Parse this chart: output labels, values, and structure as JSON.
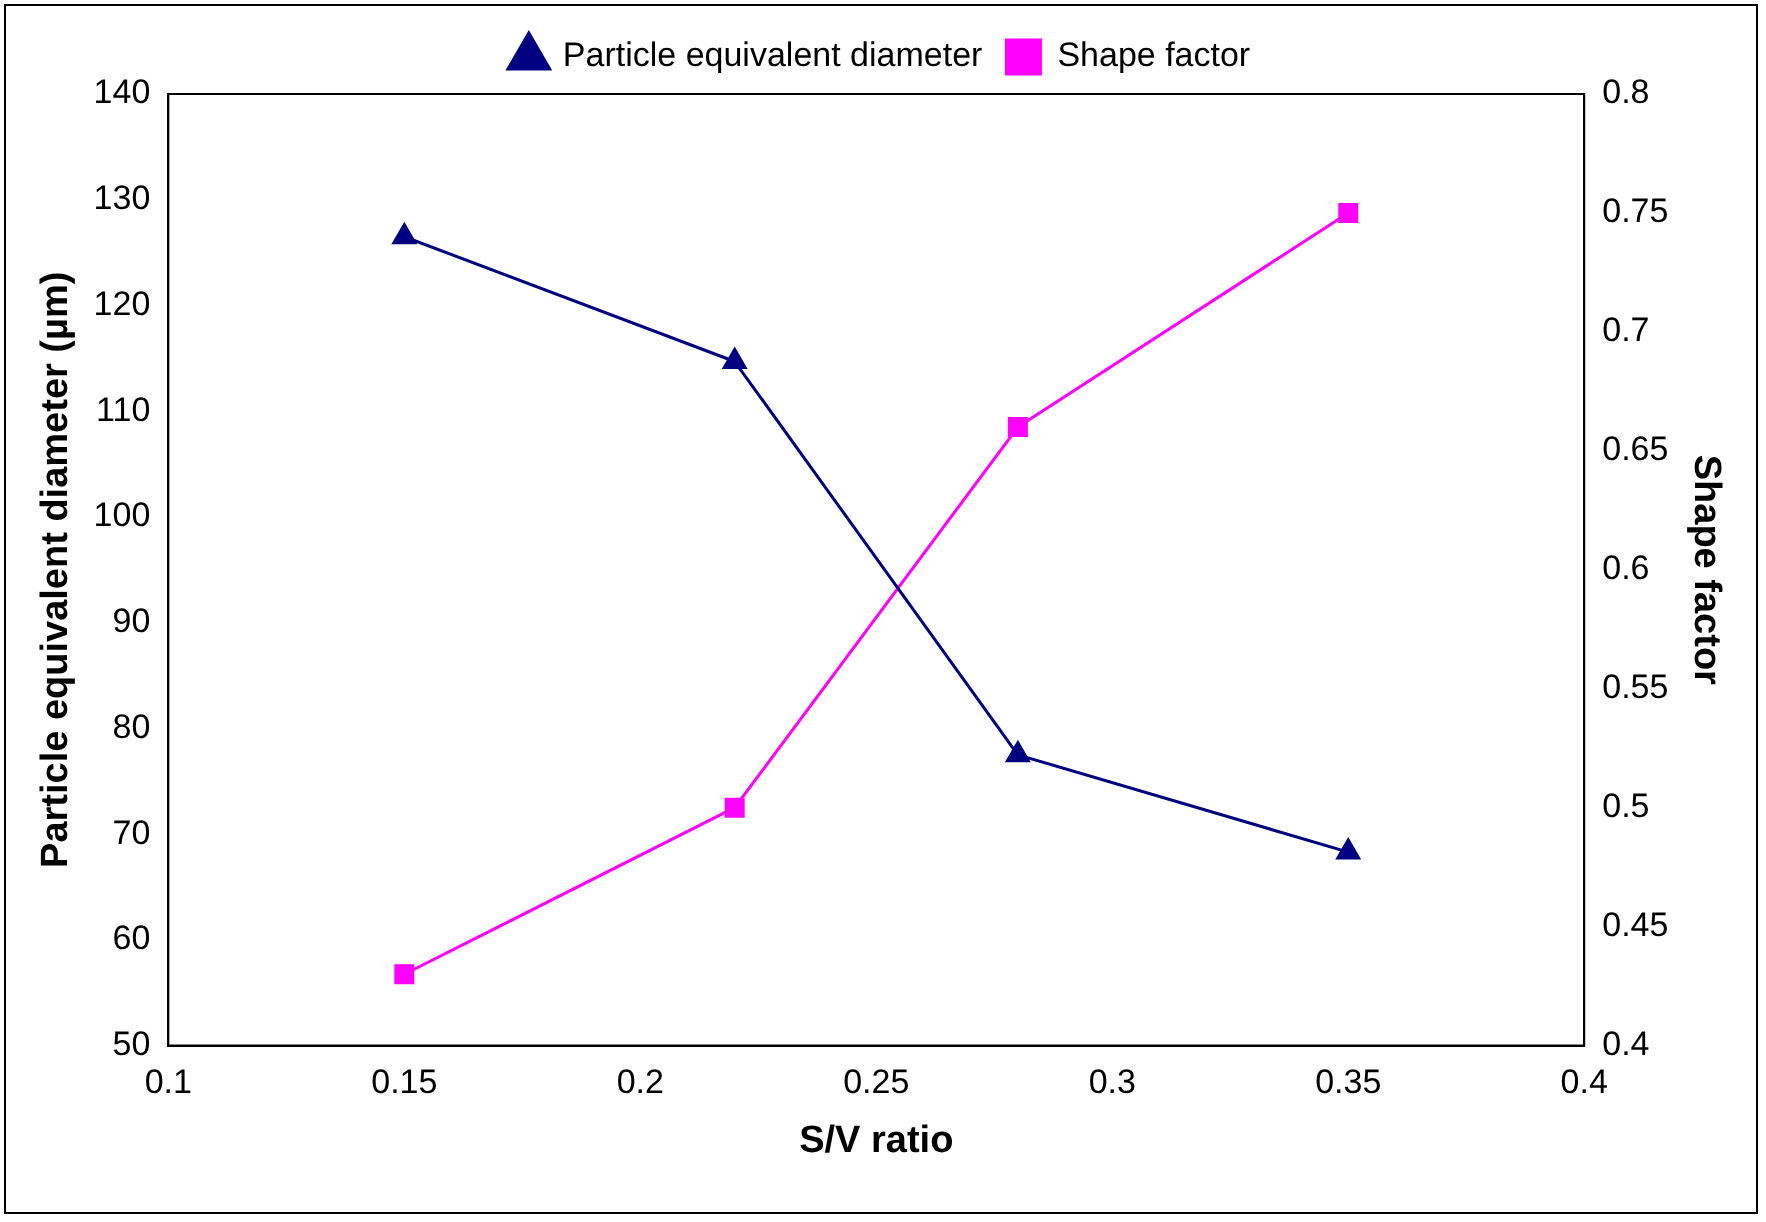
{
  "chart_data": {
    "type": "line",
    "xlabel": "S/V ratio",
    "ylabel": "Particle equivalent diameter (µm)",
    "y2label": "Shape factor",
    "x": [
      0.15,
      0.22,
      0.28,
      0.35
    ],
    "series": [
      {
        "name": "Particle equivalent diameter",
        "color": "#000080",
        "marker": "triangle",
        "values": [
          126.5,
          114.7,
          77.5,
          68.3
        ]
      },
      {
        "name": "Shape factor",
        "color": "#ff00ff",
        "marker": "square",
        "axis": "y2",
        "values": [
          0.43,
          0.5,
          0.66,
          0.75
        ]
      }
    ],
    "xlim": [
      0.1,
      0.4
    ],
    "xticks": [
      0.1,
      0.15,
      0.2,
      0.25,
      0.3,
      0.35,
      0.4
    ],
    "ylim": [
      50,
      140
    ],
    "yticks": [
      50,
      60,
      70,
      80,
      90,
      100,
      110,
      120,
      130,
      140
    ],
    "y2lim": [
      0.4,
      0.8
    ],
    "y2ticks": [
      0.4,
      0.45,
      0.5,
      0.55,
      0.6,
      0.65,
      0.7,
      0.75,
      0.8
    ],
    "grid": false,
    "legend": "top",
    "line_style": "solid"
  }
}
